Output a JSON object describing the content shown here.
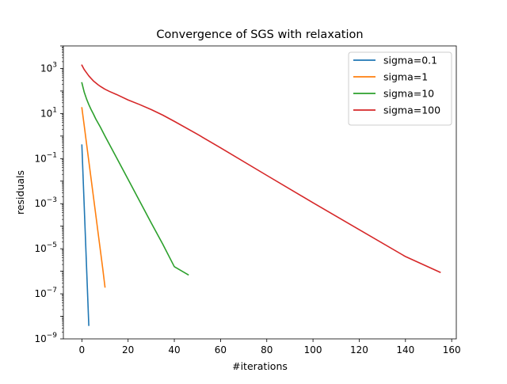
{
  "chart_data": {
    "type": "line",
    "title": "Convergence of SGS with relaxation",
    "xlabel": "#iterations",
    "ylabel": "residuals",
    "xlim": [
      -8,
      162
    ],
    "ylim": [
      1e-09,
      10000.0
    ],
    "yscale": "log",
    "xticks": [
      {
        "value": 0,
        "label": "0"
      },
      {
        "value": 20,
        "label": "20"
      },
      {
        "value": 40,
        "label": "40"
      },
      {
        "value": 60,
        "label": "60"
      },
      {
        "value": 80,
        "label": "80"
      },
      {
        "value": 100,
        "label": "100"
      },
      {
        "value": 120,
        "label": "120"
      },
      {
        "value": 140,
        "label": "140"
      },
      {
        "value": 160,
        "label": "160"
      }
    ],
    "yticks": [
      {
        "exp": -9,
        "base": "10",
        "sup": "−9"
      },
      {
        "exp": -7,
        "base": "10",
        "sup": "−7"
      },
      {
        "exp": -5,
        "base": "10",
        "sup": "−5"
      },
      {
        "exp": -3,
        "base": "10",
        "sup": "−3"
      },
      {
        "exp": -1,
        "base": "10",
        "sup": "−1"
      },
      {
        "exp": 1,
        "base": "10",
        "sup": "1"
      },
      {
        "exp": 3,
        "base": "10",
        "sup": "3"
      }
    ],
    "grid": false,
    "legend_position": "top-right",
    "series": [
      {
        "name": "sigma=0.1",
        "color": "#1f77b4",
        "x": [
          0,
          3
        ],
        "y": [
          0.4,
          4e-09
        ]
      },
      {
        "name": "sigma=1",
        "color": "#ff7f0e",
        "x": [
          0,
          1,
          2,
          3,
          4,
          5,
          6,
          7,
          8,
          9,
          10
        ],
        "y": [
          18,
          3.0,
          0.48,
          0.078,
          0.0126,
          0.00204,
          0.00033,
          5.3e-05,
          8.6e-06,
          1.4e-06,
          2e-07
        ]
      },
      {
        "name": "sigma=10",
        "color": "#2ca02c",
        "x": [
          0,
          1,
          2,
          3,
          4,
          5,
          6,
          8,
          10,
          15,
          20,
          25,
          30,
          35,
          40,
          46
        ],
        "y": [
          230,
          90,
          45,
          25,
          15,
          9.5,
          5.8,
          2.5,
          1.0,
          0.11,
          0.012,
          0.0013,
          0.00014,
          1.6e-05,
          1.6e-06,
          7e-07
        ]
      },
      {
        "name": "sigma=100",
        "color": "#d62728",
        "x": [
          0,
          1,
          2,
          3,
          4,
          5,
          6,
          7,
          8,
          10,
          12,
          15,
          20,
          25,
          30,
          35,
          40,
          50,
          60,
          80,
          100,
          120,
          140,
          155
        ],
        "y": [
          1400,
          900,
          650,
          470,
          360,
          280,
          230,
          190,
          160,
          120,
          95,
          70,
          40,
          25,
          15,
          8.5,
          4.5,
          1.2,
          0.3,
          0.018,
          0.0011,
          7e-05,
          4.5e-06,
          9e-07
        ]
      }
    ]
  }
}
